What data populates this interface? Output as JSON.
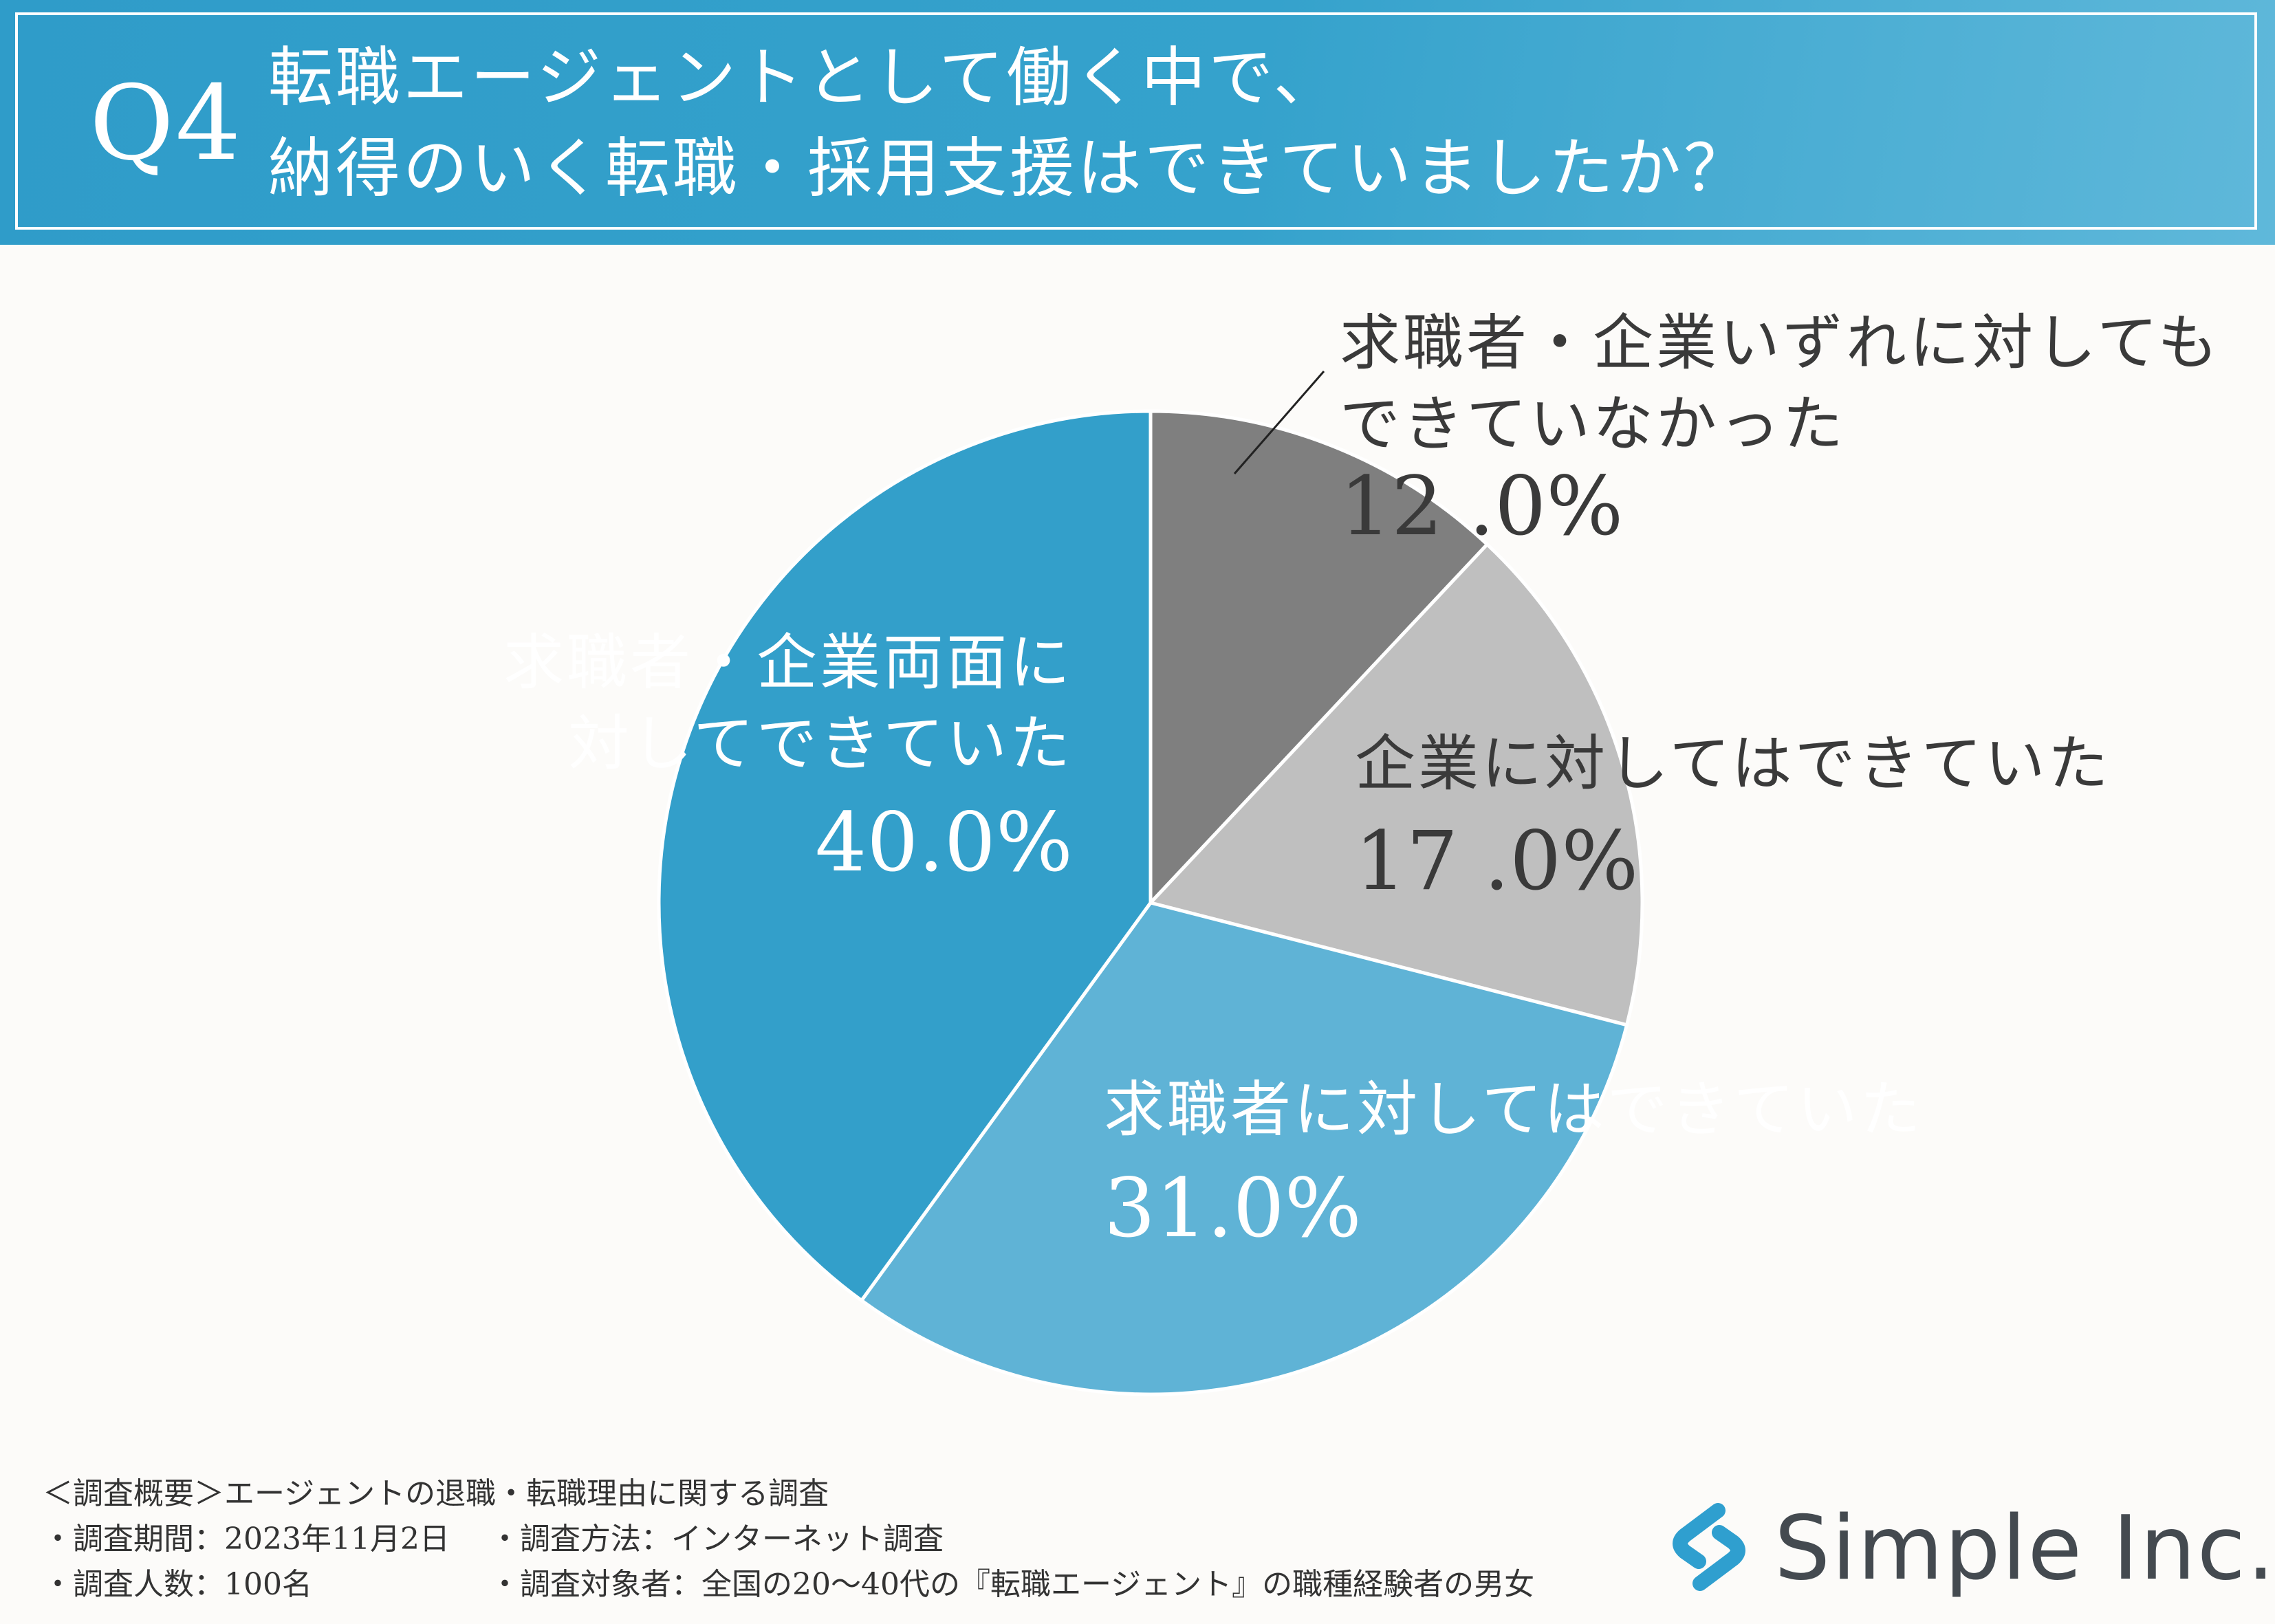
{
  "header": {
    "q_number": "Q4",
    "question_line1": "転職エージェントとして働く中で、",
    "question_line2": "納得のいく転職・採用支援はできていましたか？"
  },
  "chart_data": {
    "type": "pie",
    "start_angle_deg": 0,
    "direction": "clockwise",
    "slices": [
      {
        "label_line1": "求職者・企業いずれに対しても",
        "label_line2": "できていなかった",
        "value": 12.0,
        "value_text": "12 .0%",
        "color": "#7f7f7f"
      },
      {
        "label_line1": "企業に対してはできていた",
        "label_line2": "",
        "value": 17.0,
        "value_text": "17 .0%",
        "color": "#bfbfbf"
      },
      {
        "label_line1": "求職者に対してはできていた",
        "label_line2": "",
        "value": 31.0,
        "value_text": "31.0%",
        "color": "#5fb3d6"
      },
      {
        "label_line1": "求職者・企業両面に",
        "label_line2": "対してできていた",
        "value": 40.0,
        "value_text": "40.0%",
        "color": "#339fca"
      }
    ]
  },
  "footer": {
    "title": "＜調査概要＞エージェントの退職・転職理由に関する調査",
    "period": "・調査期間：2023年11月2日",
    "method": "・調査方法：インターネット調査",
    "respondents": "・調査人数：100名",
    "target": "・調査対象者：全国の20〜40代の『転職エージェント』の職種経験者の男女"
  },
  "logo": {
    "text": "Simple Inc.",
    "color": "#2f9fcf",
    "icon": "simple-s-logo-icon"
  }
}
